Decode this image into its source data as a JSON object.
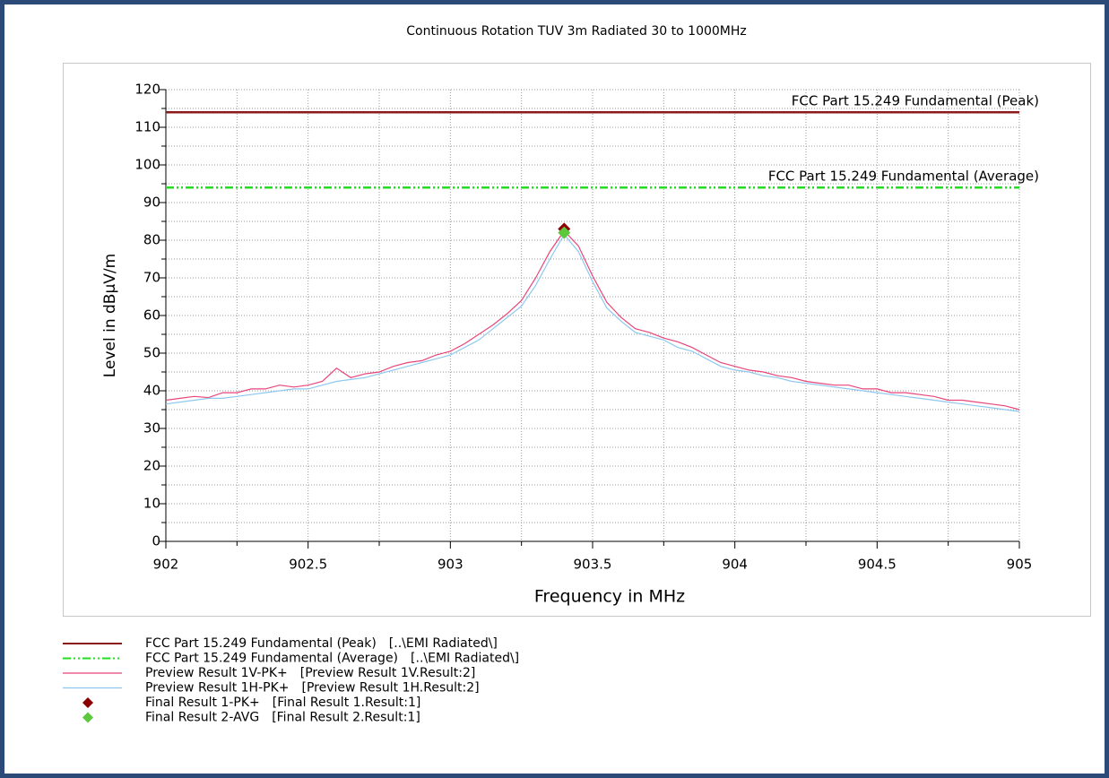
{
  "chart_data": {
    "type": "line",
    "title": "Continuous Rotation TUV 3m Radiated 30 to 1000MHz",
    "x_label": "Frequency in MHz",
    "y_label": "Level in dBµV/m",
    "xlim": [
      902,
      905
    ],
    "ylim": [
      0,
      120
    ],
    "xticks": [
      902,
      902.5,
      903,
      903.5,
      904,
      904.5,
      905
    ],
    "xticks_minor": [
      902.25,
      902.75,
      903.25,
      903.75,
      904.25,
      904.75
    ],
    "yticks": [
      0,
      10,
      20,
      30,
      40,
      50,
      60,
      70,
      80,
      90,
      100,
      110,
      120
    ],
    "yticks_minor": [
      5,
      15,
      25,
      35,
      45,
      55,
      65,
      75,
      85,
      95,
      105,
      115
    ],
    "grid": true,
    "x": [
      902,
      902.05,
      902.1,
      902.15,
      902.2,
      902.25,
      902.3,
      902.35,
      902.4,
      902.45,
      902.5,
      902.55,
      902.6,
      902.65,
      902.7,
      902.75,
      902.8,
      902.85,
      902.9,
      902.95,
      903,
      903.05,
      903.1,
      903.15,
      903.2,
      903.25,
      903.3,
      903.35,
      903.4,
      903.45,
      903.5,
      903.55,
      903.6,
      903.65,
      903.7,
      903.75,
      903.8,
      903.85,
      903.9,
      903.95,
      904,
      904.05,
      904.1,
      904.15,
      904.2,
      904.25,
      904.3,
      904.35,
      904.4,
      904.45,
      904.5,
      904.55,
      904.6,
      904.65,
      904.7,
      904.75,
      904.8,
      904.85,
      904.9,
      904.95,
      905
    ],
    "series": [
      {
        "name": "FCC Part 15.249 Fundamental (Peak)",
        "source": "[..\\EMI Radiated\\]",
        "color": "#8b1a1a",
        "style": "solid",
        "limit_label": true,
        "x": [
          902,
          905
        ],
        "values": [
          114,
          114
        ]
      },
      {
        "name": "FCC Part 15.249 Fundamental (Average)",
        "source": "[..\\EMI Radiated\\]",
        "color": "#22dd22",
        "style": "dashdot",
        "limit_label": true,
        "x": [
          902,
          905
        ],
        "values": [
          94,
          94
        ]
      },
      {
        "name": "Preview Result 1V-PK+",
        "source": "[Preview Result 1V.Result:2]",
        "color": "#e8457a",
        "style": "thin",
        "values": [
          37.5,
          38,
          38.5,
          38.2,
          39.5,
          39.5,
          40.5,
          40.5,
          41.5,
          41,
          41.5,
          42.5,
          46,
          43.5,
          44.5,
          45,
          46.5,
          47.5,
          48,
          49.5,
          50.5,
          52.5,
          55,
          57.5,
          60.5,
          64,
          70,
          77,
          82.5,
          78.5,
          70.5,
          63.5,
          59.5,
          56.5,
          55.5,
          54,
          53,
          51.5,
          49.5,
          47.5,
          46.5,
          45.5,
          45,
          44,
          43.5,
          42.5,
          42,
          41.5,
          41.5,
          40.5,
          40.5,
          39.5,
          39.5,
          39,
          38.5,
          37.5,
          37.5,
          37,
          36.5,
          36,
          35
        ]
      },
      {
        "name": "Preview Result 1H-PK+",
        "source": "[Preview Result 1H.Result:2]",
        "color": "#8ec8f0",
        "style": "thin",
        "values": [
          36.5,
          37,
          37.5,
          38,
          38,
          38.5,
          39,
          39.5,
          40,
          40.5,
          40.5,
          41.5,
          42.5,
          43,
          43.5,
          44.5,
          45.5,
          46.5,
          47.5,
          48.5,
          49.5,
          51.5,
          53.5,
          56.5,
          59.5,
          62.5,
          68,
          75,
          81.5,
          77,
          69,
          62,
          58.5,
          55.5,
          54.5,
          53.5,
          51.5,
          50.5,
          48.5,
          46.5,
          45.5,
          45,
          44,
          43.5,
          42.5,
          42,
          41.5,
          41,
          40.5,
          40,
          39.5,
          39,
          38.5,
          38,
          37.5,
          37,
          36.5,
          36,
          35.5,
          35,
          34.5
        ]
      },
      {
        "name": "Final Result 1-PK+",
        "source": "[Final Result 1.Result:1]",
        "color": "#8b0000",
        "style": "marker",
        "x": [
          903.4
        ],
        "values": [
          83
        ]
      },
      {
        "name": "Final Result 2-AVG",
        "source": "[Final Result 2.Result:1]",
        "color": "#5cc83c",
        "style": "marker",
        "x": [
          903.4
        ],
        "values": [
          82
        ]
      }
    ]
  }
}
